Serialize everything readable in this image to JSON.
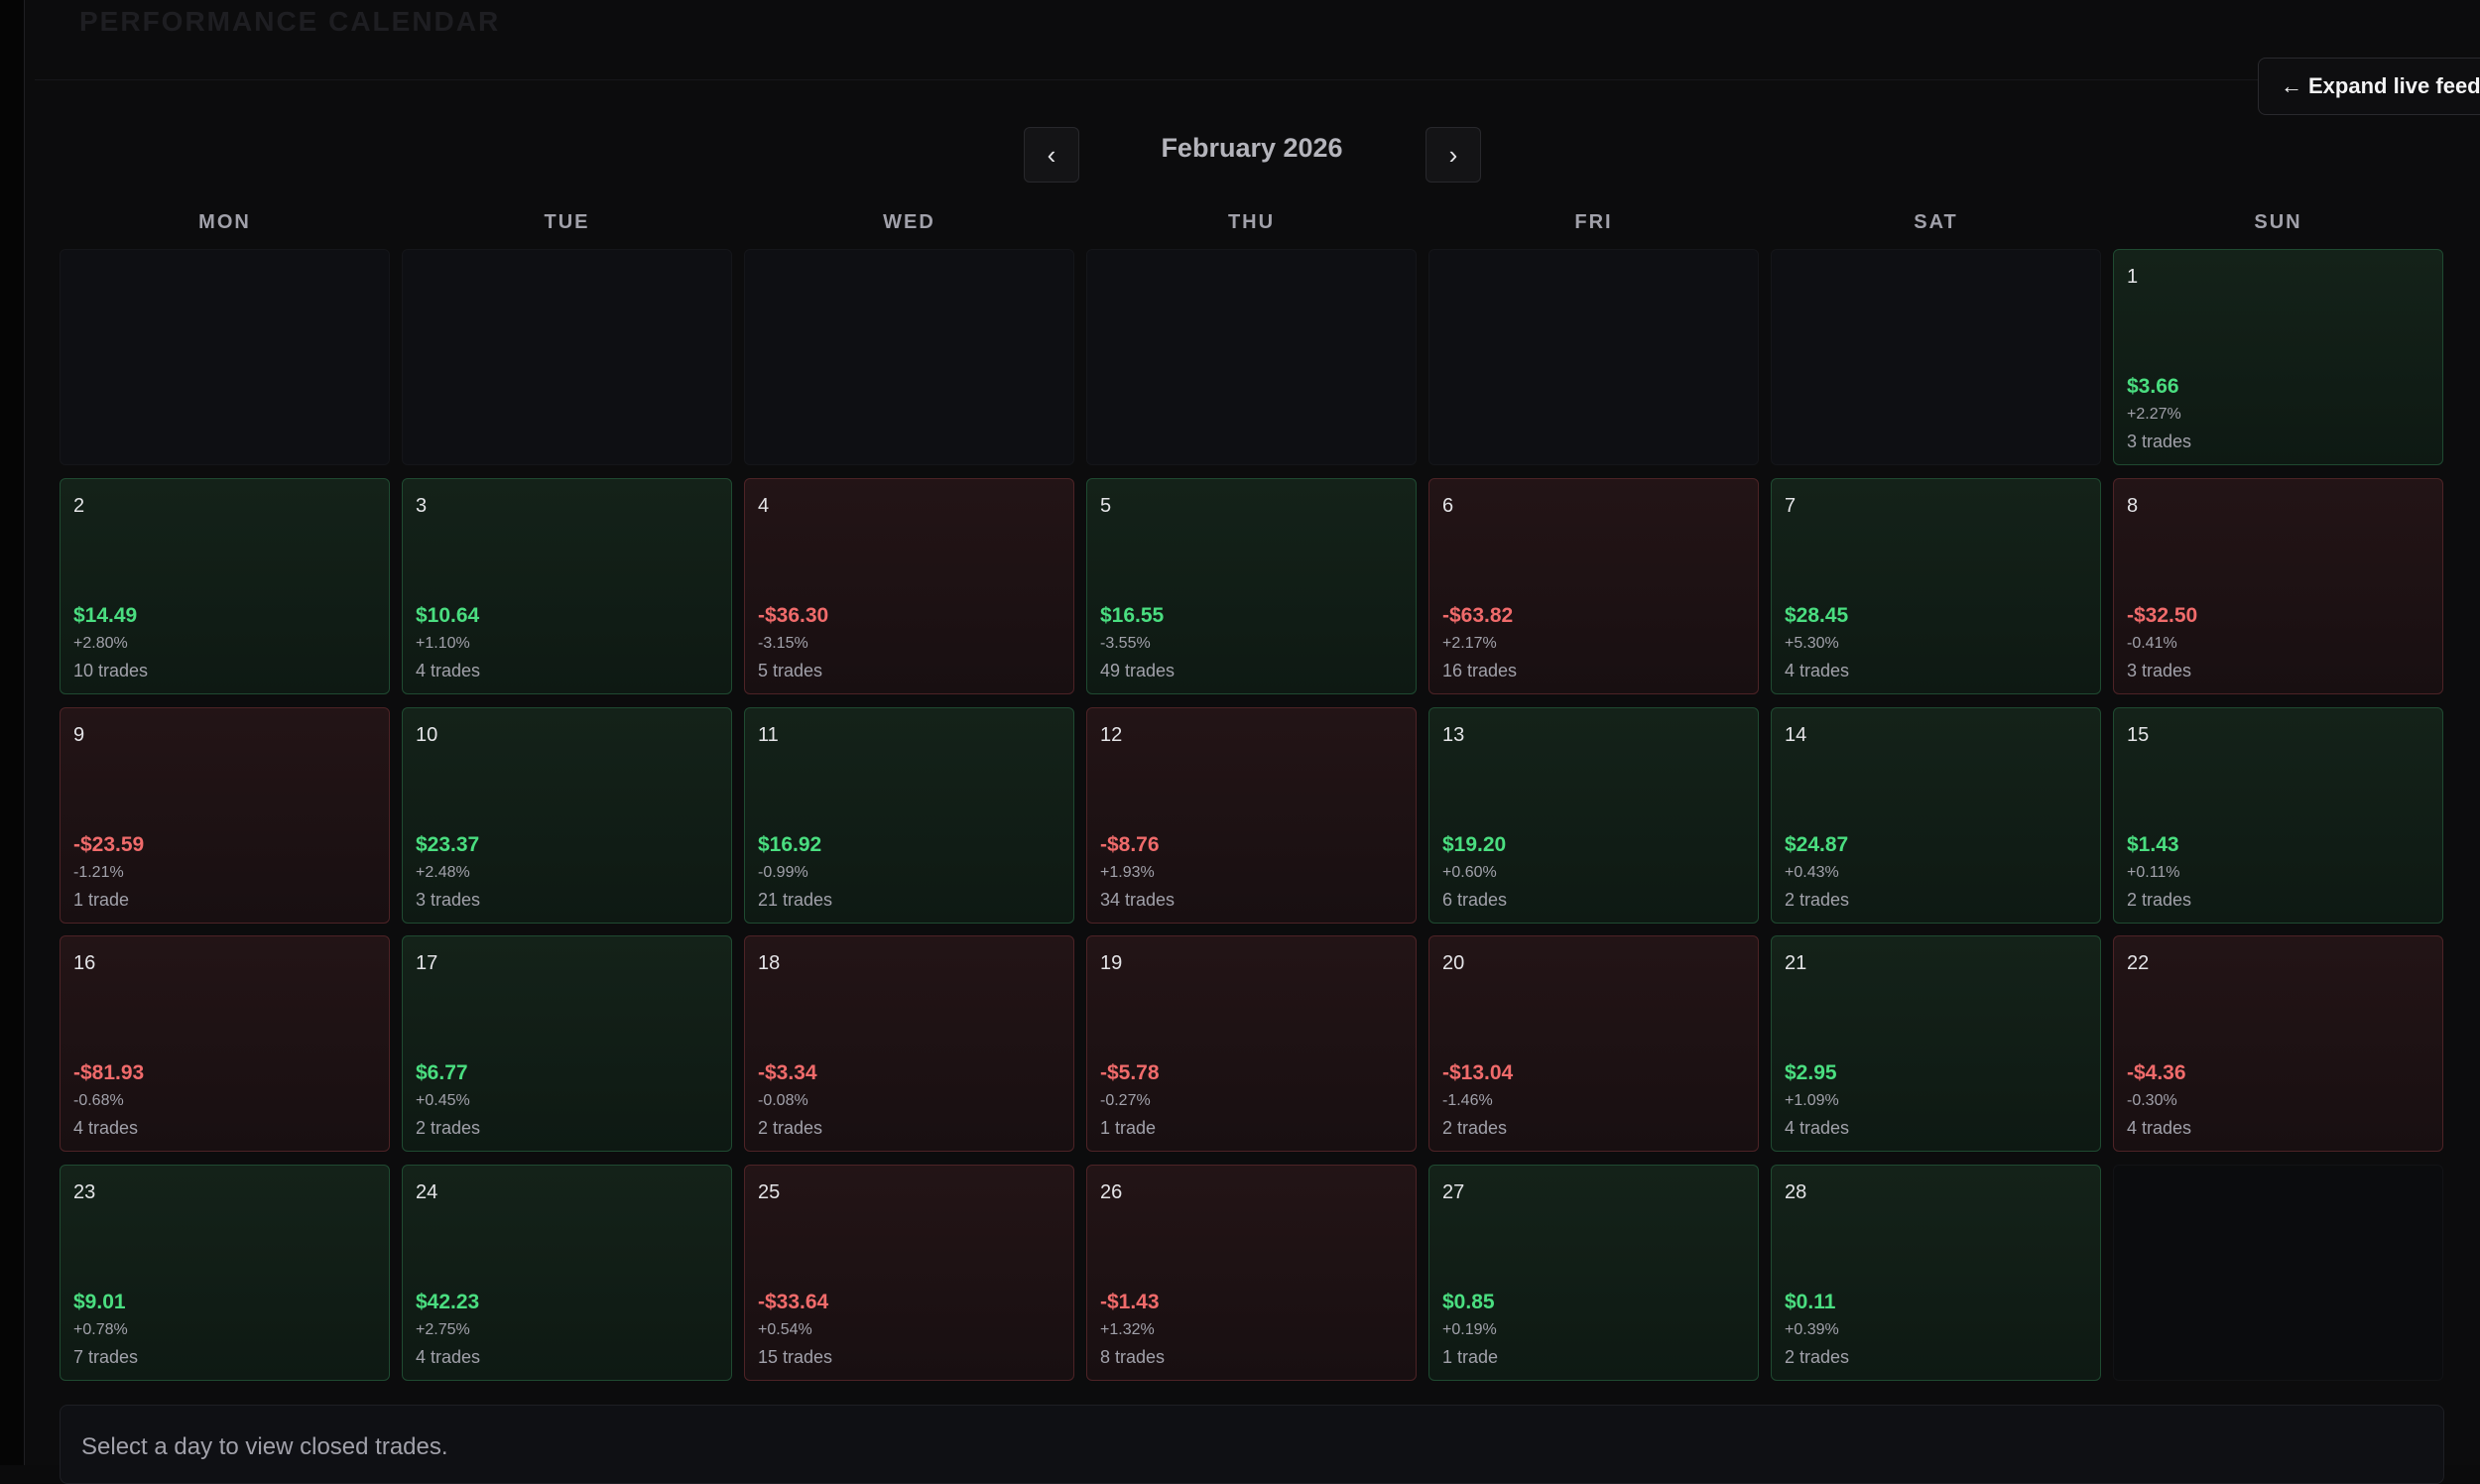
{
  "header": {
    "heading": "PERFORMANCE CALENDAR",
    "expand_label": "Expand live feed",
    "expand_icon": "←"
  },
  "calendar": {
    "month_label": "February 2026",
    "prev_icon": "‹",
    "next_icon": "›",
    "weekdays": [
      "MON",
      "TUE",
      "WED",
      "THU",
      "FRI",
      "SAT",
      "SUN"
    ],
    "days": [
      {
        "day": "1",
        "pnl": "$3.66",
        "pct": "+2.27%",
        "trades": "3 trades",
        "status": "pos"
      },
      {
        "day": "2",
        "pnl": "$14.49",
        "pct": "+2.80%",
        "trades": "10 trades",
        "status": "pos"
      },
      {
        "day": "3",
        "pnl": "$10.64",
        "pct": "+1.10%",
        "trades": "4 trades",
        "status": "pos"
      },
      {
        "day": "4",
        "pnl": "-$36.30",
        "pct": "-3.15%",
        "trades": "5 trades",
        "status": "neg"
      },
      {
        "day": "5",
        "pnl": "$16.55",
        "pct": "-3.55%",
        "trades": "49 trades",
        "status": "pos"
      },
      {
        "day": "6",
        "pnl": "-$63.82",
        "pct": "+2.17%",
        "trades": "16 trades",
        "status": "neg"
      },
      {
        "day": "7",
        "pnl": "$28.45",
        "pct": "+5.30%",
        "trades": "4 trades",
        "status": "pos"
      },
      {
        "day": "8",
        "pnl": "-$32.50",
        "pct": "-0.41%",
        "trades": "3 trades",
        "status": "neg"
      },
      {
        "day": "9",
        "pnl": "-$23.59",
        "pct": "-1.21%",
        "trades": "1 trade",
        "status": "neg"
      },
      {
        "day": "10",
        "pnl": "$23.37",
        "pct": "+2.48%",
        "trades": "3 trades",
        "status": "pos"
      },
      {
        "day": "11",
        "pnl": "$16.92",
        "pct": "-0.99%",
        "trades": "21 trades",
        "status": "pos"
      },
      {
        "day": "12",
        "pnl": "-$8.76",
        "pct": "+1.93%",
        "trades": "34 trades",
        "status": "neg"
      },
      {
        "day": "13",
        "pnl": "$19.20",
        "pct": "+0.60%",
        "trades": "6 trades",
        "status": "pos"
      },
      {
        "day": "14",
        "pnl": "$24.87",
        "pct": "+0.43%",
        "trades": "2 trades",
        "status": "pos"
      },
      {
        "day": "15",
        "pnl": "$1.43",
        "pct": "+0.11%",
        "trades": "2 trades",
        "status": "pos"
      },
      {
        "day": "16",
        "pnl": "-$81.93",
        "pct": "-0.68%",
        "trades": "4 trades",
        "status": "neg"
      },
      {
        "day": "17",
        "pnl": "$6.77",
        "pct": "+0.45%",
        "trades": "2 trades",
        "status": "pos"
      },
      {
        "day": "18",
        "pnl": "-$3.34",
        "pct": "-0.08%",
        "trades": "2 trades",
        "status": "neg"
      },
      {
        "day": "19",
        "pnl": "-$5.78",
        "pct": "-0.27%",
        "trades": "1 trade",
        "status": "neg"
      },
      {
        "day": "20",
        "pnl": "-$13.04",
        "pct": "-1.46%",
        "trades": "2 trades",
        "status": "neg"
      },
      {
        "day": "21",
        "pnl": "$2.95",
        "pct": "+1.09%",
        "trades": "4 trades",
        "status": "pos"
      },
      {
        "day": "22",
        "pnl": "-$4.36",
        "pct": "-0.30%",
        "trades": "4 trades",
        "status": "neg"
      },
      {
        "day": "23",
        "pnl": "$9.01",
        "pct": "+0.78%",
        "trades": "7 trades",
        "status": "pos"
      },
      {
        "day": "24",
        "pnl": "$42.23",
        "pct": "+2.75%",
        "trades": "4 trades",
        "status": "pos"
      },
      {
        "day": "25",
        "pnl": "-$33.64",
        "pct": "+0.54%",
        "trades": "15 trades",
        "status": "neg"
      },
      {
        "day": "26",
        "pnl": "-$1.43",
        "pct": "+1.32%",
        "trades": "8 trades",
        "status": "neg"
      },
      {
        "day": "27",
        "pnl": "$0.85",
        "pct": "+0.19%",
        "trades": "1 trade",
        "status": "pos"
      },
      {
        "day": "28",
        "pnl": "$0.11",
        "pct": "+0.39%",
        "trades": "2 trades",
        "status": "pos"
      }
    ]
  },
  "detail": {
    "empty_message": "Select a day to view closed trades."
  },
  "colors": {
    "positive": "#4ade80",
    "negative": "#f06b6b",
    "background": "#0c0c0d"
  }
}
